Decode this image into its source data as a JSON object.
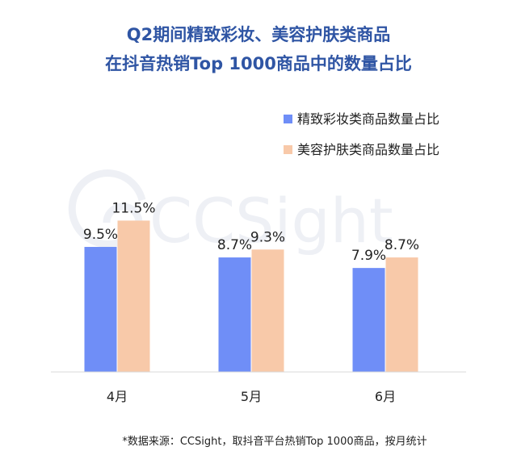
{
  "title": {
    "line1": "Q2期间精致彩妆、美容护肤类商品",
    "line2": "在抖音热销Top 1000商品中的数量占比"
  },
  "watermark": "CCSight",
  "source": "*数据来源：CCSight，取抖音平台热销Top 1000商品，按月统计",
  "colors": {
    "series1": "#6f8ef7",
    "series2": "#f8c9a9",
    "title": "#2f55a4"
  },
  "chart_data": {
    "type": "bar",
    "categories": [
      "4月",
      "5月",
      "6月"
    ],
    "series": [
      {
        "name": "精致彩妆类商品数量占比",
        "values": [
          9.5,
          8.7,
          7.9
        ],
        "labels": [
          "9.5%",
          "8.7%",
          "7.9%"
        ]
      },
      {
        "name": "美容护肤类商品数量占比",
        "values": [
          11.5,
          9.3,
          8.7
        ],
        "labels": [
          "11.5%",
          "9.3%",
          "8.7%"
        ]
      }
    ],
    "ylim": [
      0,
      16
    ],
    "grid": false,
    "legend_position": "top-right"
  }
}
